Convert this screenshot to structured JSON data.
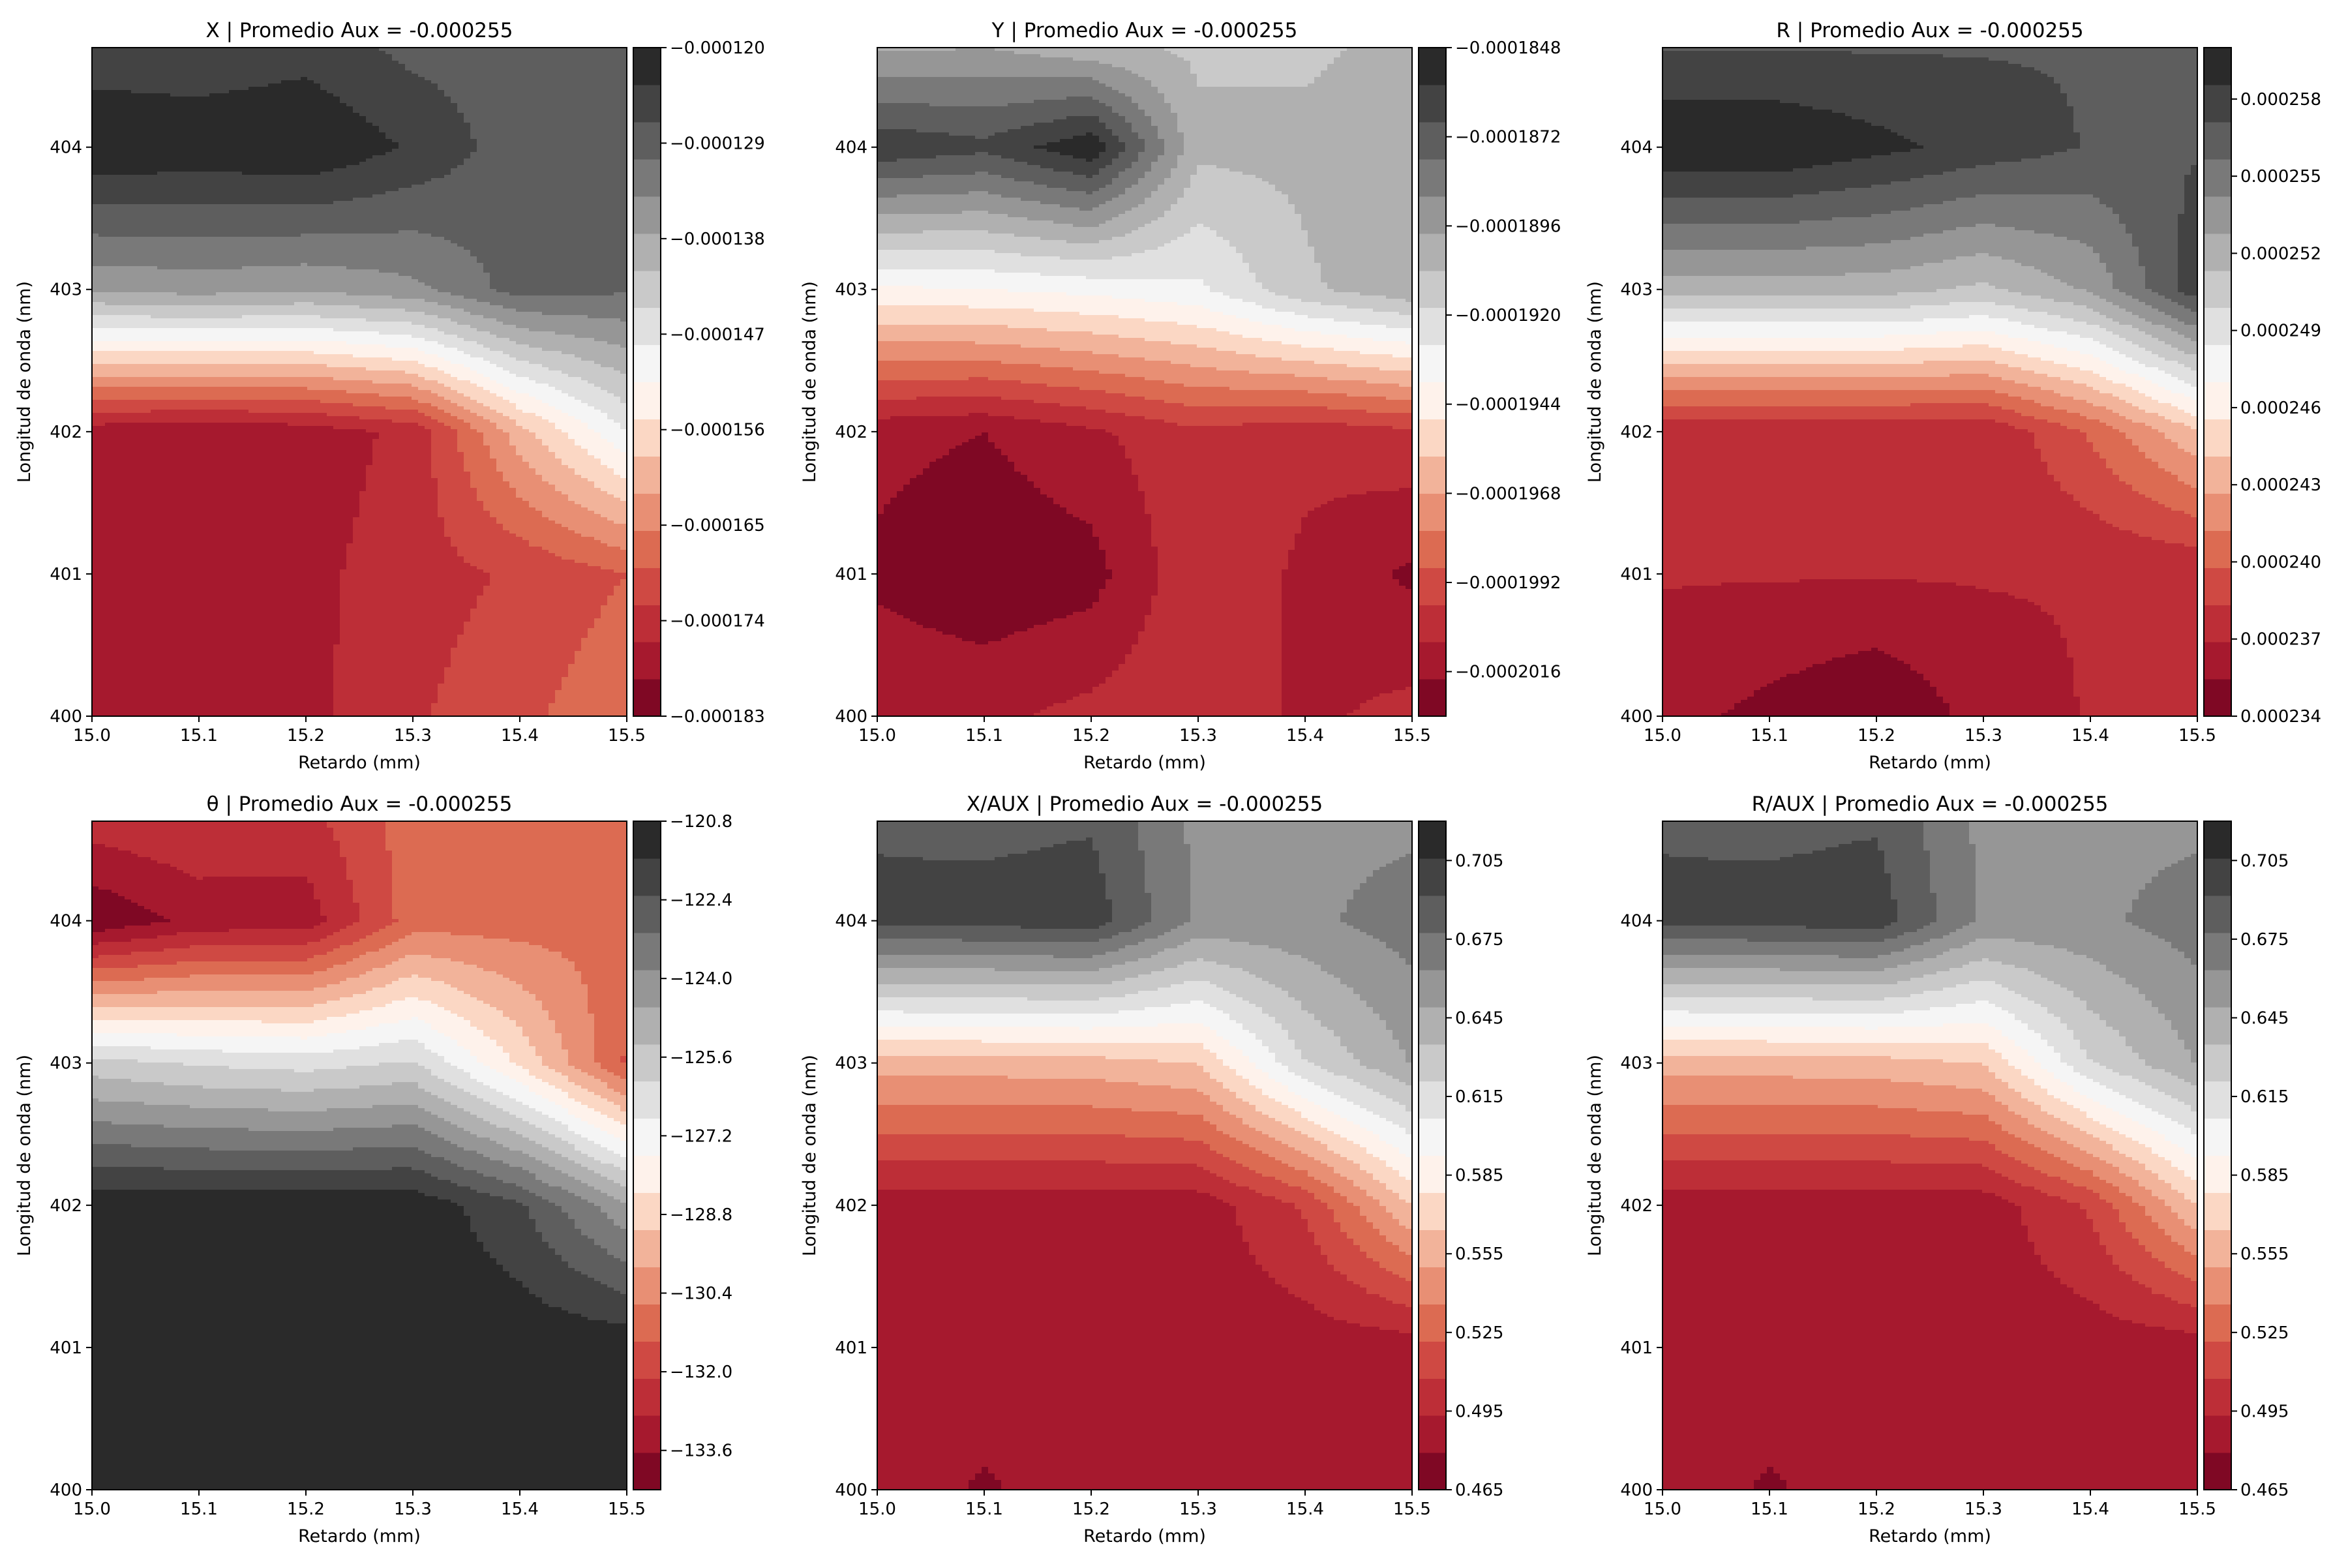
{
  "palette": [
    "#6b001f",
    "#a6192e",
    "#c8383c",
    "#dc6b52",
    "#eea185",
    "#fbd7c4",
    "#ffffff",
    "#e0e0e0",
    "#bdbdbd",
    "#969696",
    "#6b6b6b",
    "#434343",
    "#1e1e1e"
  ],
  "chart_data": [
    {
      "type": "heatmap",
      "title": "X | Promedio Aux = -0.000255",
      "xlabel": "Retardo (mm)",
      "ylabel": "Longitud de onda (nm)",
      "xlim": [
        15.0,
        15.5
      ],
      "ylim": [
        400,
        404.7
      ],
      "xticks": [
        "15.0",
        "15.1",
        "15.2",
        "15.3",
        "15.4",
        "15.5"
      ],
      "yticks": [
        "400",
        "401",
        "402",
        "403",
        "404"
      ],
      "colorbar": {
        "min": -0.000183,
        "max": -0.00012,
        "ticks": [
          "−0.000183",
          "−0.000174",
          "−0.000165",
          "−0.000156",
          "−0.000147",
          "−0.000138",
          "−0.000129",
          "−0.000120"
        ]
      },
      "x": [
        15.0,
        15.1,
        15.2,
        15.3,
        15.4,
        15.5
      ],
      "y": [
        400,
        401,
        402,
        403,
        404,
        404.7
      ],
      "z": [
        [
          -0.000176,
          -0.000178,
          -0.000177,
          -0.000173,
          -0.00017,
          -0.000166
        ],
        [
          -0.000176,
          -0.000178,
          -0.000177,
          -0.000174,
          -0.000172,
          -0.000169
        ],
        [
          -0.000178,
          -0.000179,
          -0.000178,
          -0.000175,
          -0.00016,
          -0.000148
        ],
        [
          -0.000137,
          -0.000136,
          -0.000137,
          -0.000135,
          -0.000129,
          -0.00013
        ],
        [
          -0.00012,
          -0.000121,
          -0.00012,
          -0.000124,
          -0.000129,
          -0.00013
        ],
        [
          -0.000126,
          -0.000126,
          -0.000125,
          -0.000128,
          -0.000129,
          -0.00013
        ]
      ]
    },
    {
      "type": "heatmap",
      "title": "Y | Promedio Aux = -0.000255",
      "xlabel": "Retardo (mm)",
      "ylabel": "Longitud de onda (nm)",
      "xlim": [
        15.0,
        15.5
      ],
      "ylim": [
        400,
        404.7
      ],
      "xticks": [
        "15.0",
        "15.1",
        "15.2",
        "15.3",
        "15.4",
        "15.5"
      ],
      "yticks": [
        "400",
        "401",
        "402",
        "403",
        "404"
      ],
      "colorbar": {
        "min": -0.0002028,
        "max": -0.0001848,
        "ticks": [
          "−0.0002016",
          "−0.0001992",
          "−0.0001968",
          "−0.0001944",
          "−0.0001920",
          "−0.0001896",
          "−0.0001872",
          "−0.0001848"
        ]
      },
      "x": [
        15.0,
        15.1,
        15.2,
        15.3,
        15.4,
        15.5
      ],
      "y": [
        400,
        401,
        402,
        403,
        404,
        404.7
      ],
      "z": [
        [
          -0.000201,
          -0.000201,
          -0.0002005,
          -0.0002,
          -0.000201,
          -0.0002005
        ],
        [
          -0.000202,
          -0.0002026,
          -0.0002022,
          -0.0002,
          -0.000201,
          -0.000202
        ],
        [
          -0.0002015,
          -0.0002018,
          -0.000201,
          -0.0002,
          -0.0002005,
          -0.0002
        ],
        [
          -0.000194,
          -0.0001938,
          -0.0001935,
          -0.000193,
          -0.000191,
          -0.00019
        ],
        [
          -0.000186,
          -0.0001865,
          -0.000185,
          -0.0001905,
          -0.0001905,
          -0.00019
        ],
        [
          -0.00019,
          -0.0001898,
          -0.0001905,
          -0.000191,
          -0.000191,
          -0.0001905
        ]
      ]
    },
    {
      "type": "heatmap",
      "title": "R | Promedio Aux = -0.000255",
      "xlabel": "Retardo (mm)",
      "ylabel": "Longitud de onda (nm)",
      "xlim": [
        15.0,
        15.5
      ],
      "ylim": [
        400,
        404.7
      ],
      "xticks": [
        "15.0",
        "15.1",
        "15.2",
        "15.3",
        "15.4",
        "15.5"
      ],
      "yticks": [
        "400",
        "401",
        "402",
        "403",
        "404"
      ],
      "colorbar": {
        "min": 0.000234,
        "max": 0.00026,
        "ticks": [
          "0.000234",
          "0.000237",
          "0.000240",
          "0.000243",
          "0.000246",
          "0.000249",
          "0.000252",
          "0.000255",
          "0.000258"
        ]
      },
      "x": [
        15.0,
        15.1,
        15.2,
        15.3,
        15.4,
        15.5
      ],
      "y": [
        400,
        401,
        402,
        403,
        404,
        404.7
      ],
      "z": [
        [
          0.000236,
          0.000235,
          0.000234,
          0.000236,
          0.000237,
          0.000238
        ],
        [
          0.000237,
          0.000237,
          0.000237,
          0.000237,
          0.000237,
          0.000237
        ],
        [
          0.000237,
          0.000237,
          0.000237,
          0.000237,
          0.00024,
          0.000244
        ],
        [
          0.000252,
          0.000252,
          0.000252,
          0.000251,
          0.000253,
          0.000258
        ],
        [
          0.00026,
          0.00026,
          0.000259,
          0.000258,
          0.000257,
          0.000257
        ],
        [
          0.000257,
          0.000257,
          0.000257,
          0.000257,
          0.000257,
          0.000257
        ]
      ]
    },
    {
      "type": "heatmap",
      "title": "θ | Promedio Aux = -0.000255",
      "xlabel": "Retardo (mm)",
      "ylabel": "Longitud de onda (nm)",
      "xlim": [
        15.0,
        15.5
      ],
      "ylim": [
        400,
        404.7
      ],
      "xticks": [
        "15.0",
        "15.1",
        "15.2",
        "15.3",
        "15.4",
        "15.5"
      ],
      "yticks": [
        "400",
        "401",
        "402",
        "403",
        "404"
      ],
      "colorbar": {
        "min": -134.4,
        "max": -120.8,
        "ticks": [
          "−133.6",
          "−132.0",
          "−130.4",
          "−128.8",
          "−127.2",
          "−125.6",
          "−124.0",
          "−122.4",
          "−120.8"
        ]
      },
      "x": [
        15.0,
        15.1,
        15.2,
        15.3,
        15.4,
        15.5
      ],
      "y": [
        400,
        401,
        402,
        403,
        404,
        404.7
      ],
      "z": [
        [
          -121.0,
          -121.0,
          -121.0,
          -121.5,
          -121.0,
          -121.0
        ],
        [
          -121.0,
          -121.0,
          -121.0,
          -121.0,
          -121.0,
          -121.0
        ],
        [
          -121.0,
          -121.0,
          -121.0,
          -121.0,
          -122.2,
          -124.5
        ],
        [
          -125.8,
          -126.2,
          -126.4,
          -126.0,
          -128.5,
          -131.5
        ],
        [
          -134.3,
          -133.4,
          -133.3,
          -131.0,
          -131.0,
          -130.8
        ],
        [
          -132.5,
          -132.2,
          -132.4,
          -131.0,
          -131.0,
          -131.0
        ]
      ]
    },
    {
      "type": "heatmap",
      "title": "X/AUX | Promedio Aux = -0.000255",
      "xlabel": "Retardo (mm)",
      "ylabel": "Longitud de onda (nm)",
      "xlim": [
        15.0,
        15.5
      ],
      "ylim": [
        400,
        404.7
      ],
      "xticks": [
        "15.0",
        "15.1",
        "15.2",
        "15.3",
        "15.4",
        "15.5"
      ],
      "yticks": [
        "400",
        "401",
        "402",
        "403",
        "404"
      ],
      "colorbar": {
        "min": 0.465,
        "max": 0.72,
        "ticks": [
          "0.465",
          "0.495",
          "0.525",
          "0.555",
          "0.585",
          "0.615",
          "0.645",
          "0.675",
          "0.705"
        ]
      },
      "x": [
        15.0,
        15.1,
        15.2,
        15.3,
        15.4,
        15.5
      ],
      "y": [
        400,
        401,
        402,
        403,
        404,
        404.7
      ],
      "z": [
        [
          0.485,
          0.478,
          0.484,
          0.485,
          0.485,
          0.485
        ],
        [
          0.485,
          0.485,
          0.485,
          0.485,
          0.485,
          0.485
        ],
        [
          0.485,
          0.485,
          0.485,
          0.485,
          0.51,
          0.565
        ],
        [
          0.557,
          0.557,
          0.558,
          0.565,
          0.62,
          0.65
        ],
        [
          0.695,
          0.697,
          0.7,
          0.66,
          0.66,
          0.67
        ],
        [
          0.69,
          0.688,
          0.69,
          0.66,
          0.66,
          0.66
        ]
      ]
    },
    {
      "type": "heatmap",
      "title": "R/AUX | Promedio Aux = -0.000255",
      "xlabel": "Retardo (mm)",
      "ylabel": "Longitud de onda (nm)",
      "xlim": [
        15.0,
        15.5
      ],
      "ylim": [
        400,
        404.7
      ],
      "xticks": [
        "15.0",
        "15.1",
        "15.2",
        "15.3",
        "15.4",
        "15.5"
      ],
      "yticks": [
        "400",
        "401",
        "402",
        "403",
        "404"
      ],
      "colorbar": {
        "min": 0.465,
        "max": 0.72,
        "ticks": [
          "0.465",
          "0.495",
          "0.525",
          "0.555",
          "0.585",
          "0.615",
          "0.645",
          "0.675",
          "0.705"
        ]
      },
      "x": [
        15.0,
        15.1,
        15.2,
        15.3,
        15.4,
        15.5
      ],
      "y": [
        400,
        401,
        402,
        403,
        404,
        404.7
      ],
      "z": [
        [
          0.485,
          0.478,
          0.484,
          0.485,
          0.485,
          0.485
        ],
        [
          0.485,
          0.485,
          0.485,
          0.485,
          0.485,
          0.485
        ],
        [
          0.485,
          0.485,
          0.485,
          0.485,
          0.51,
          0.565
        ],
        [
          0.557,
          0.557,
          0.558,
          0.565,
          0.62,
          0.65
        ],
        [
          0.695,
          0.697,
          0.7,
          0.66,
          0.66,
          0.67
        ],
        [
          0.69,
          0.688,
          0.69,
          0.66,
          0.66,
          0.66
        ]
      ]
    }
  ]
}
